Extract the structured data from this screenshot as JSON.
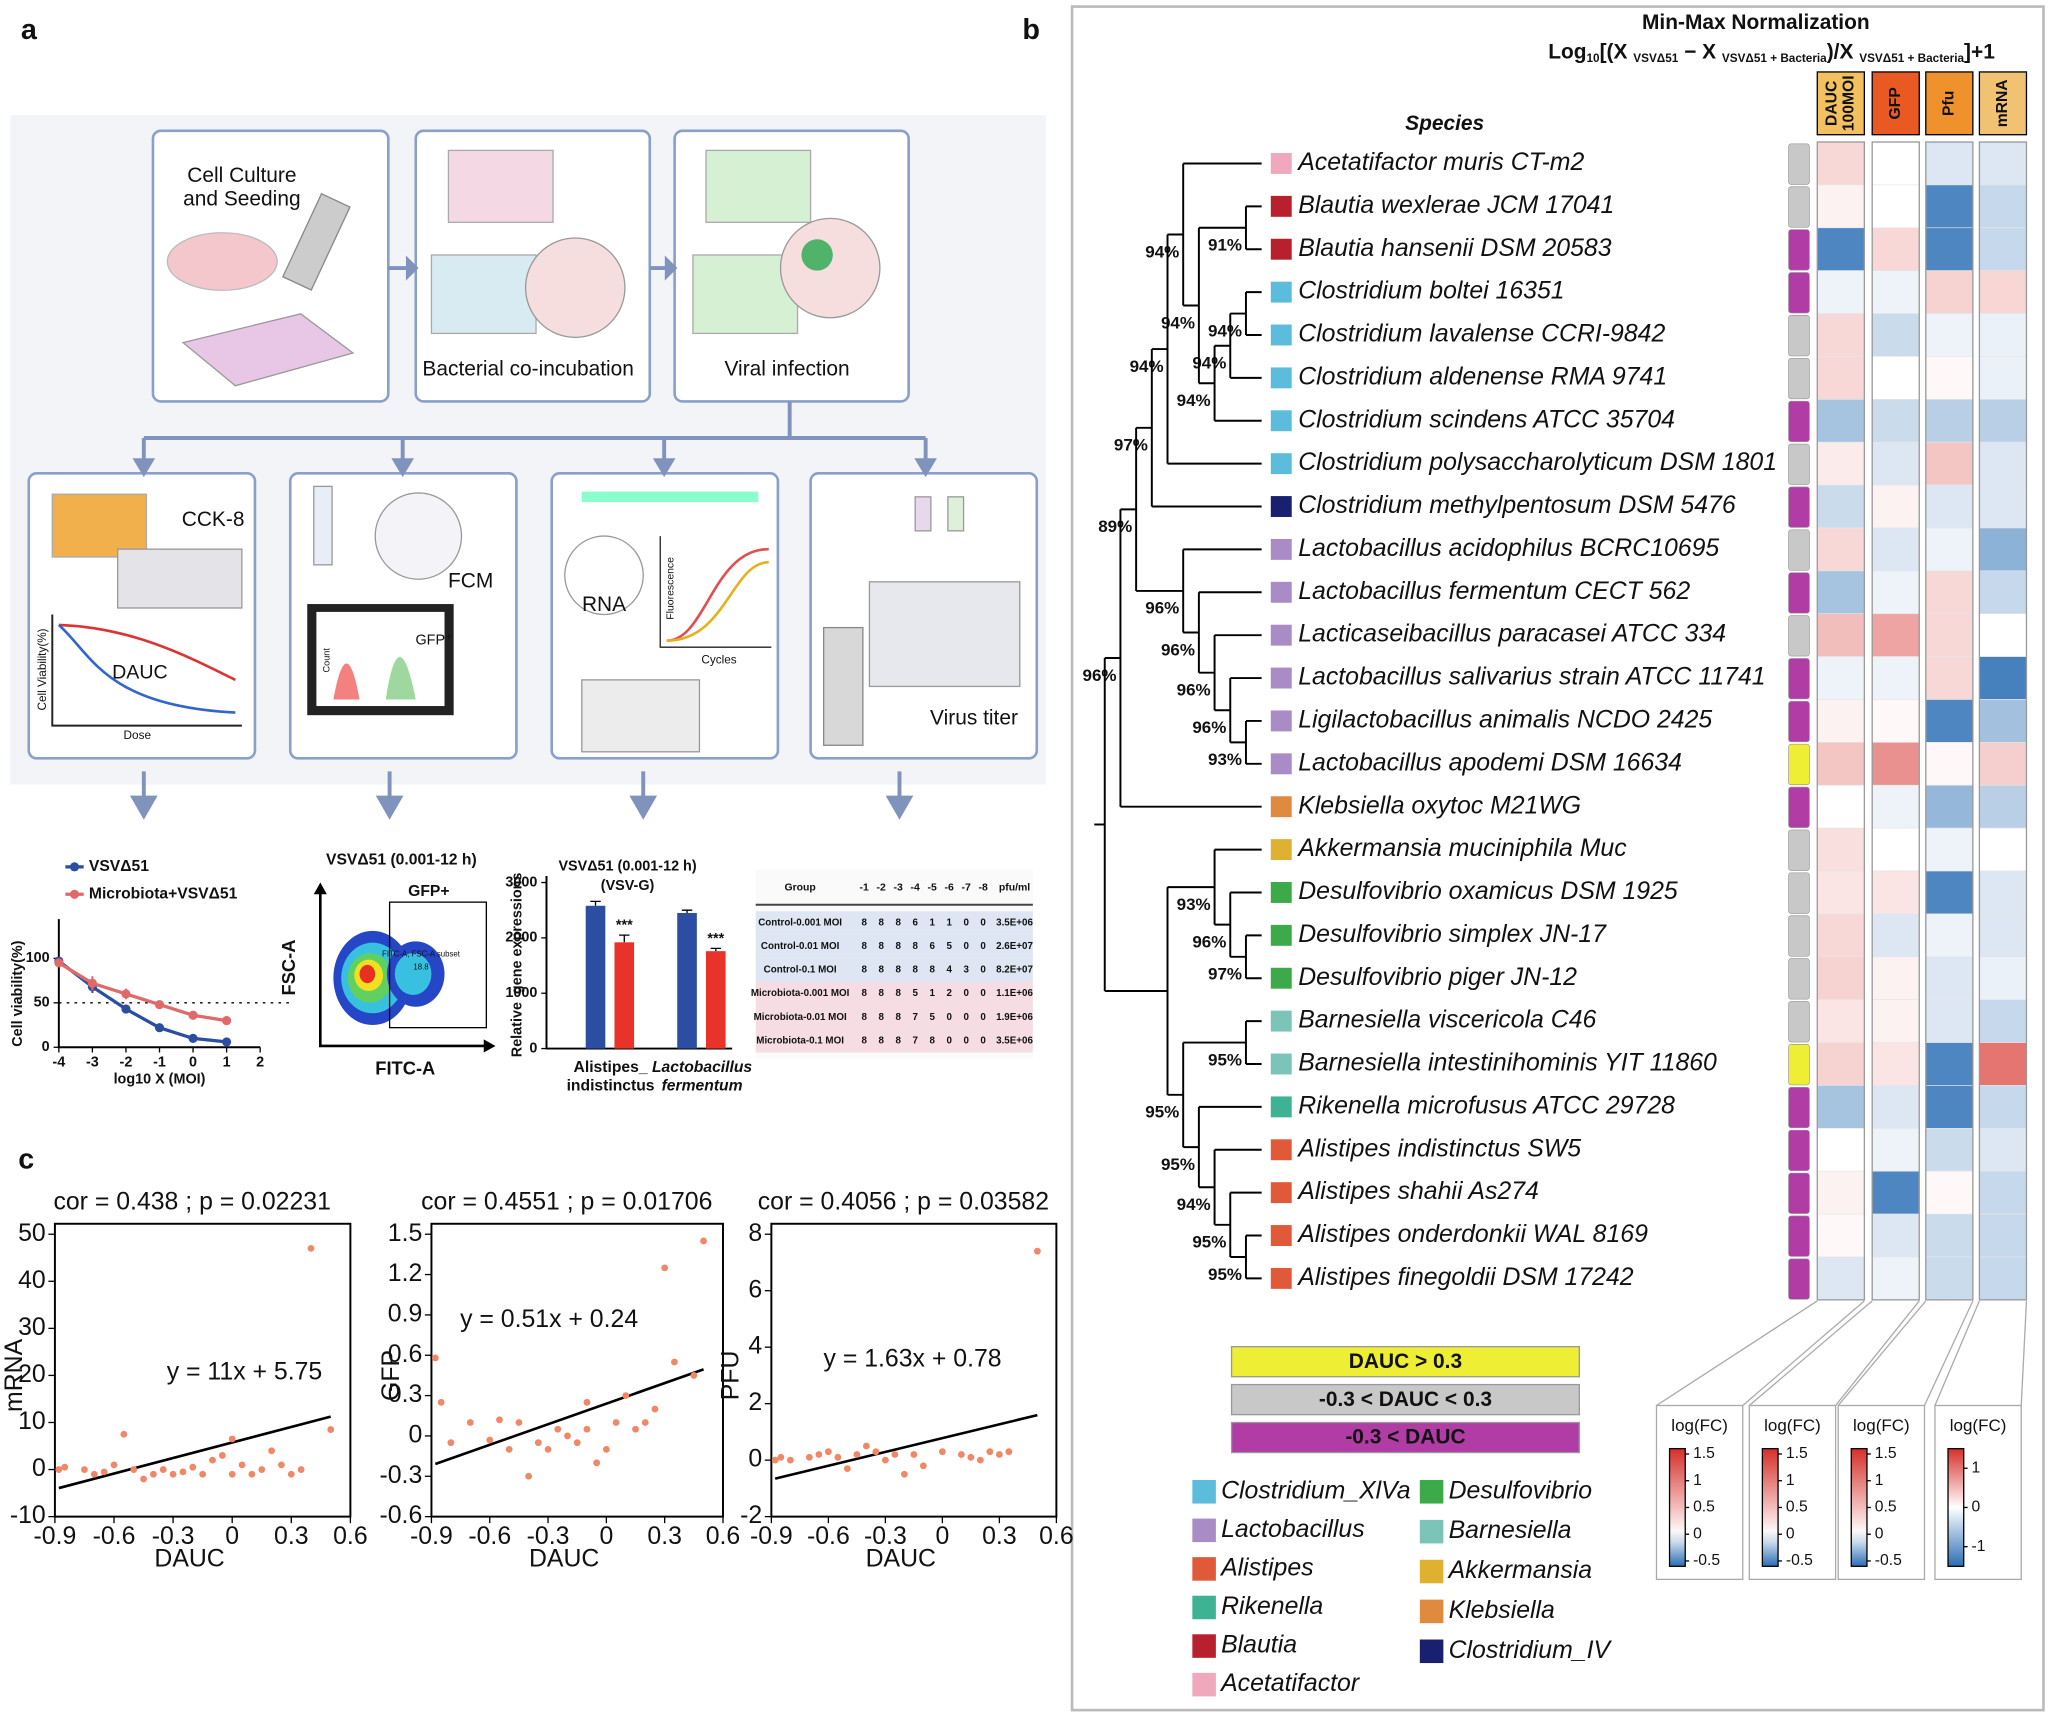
{
  "panel_labels": {
    "a": "a",
    "b": "b",
    "c": "c"
  },
  "workflow": {
    "culture": [
      "Cell Culture",
      "and Seeding"
    ],
    "coincubation": "Bacterial co-incubation",
    "infection": "Viral infection",
    "cck8": "CCK-8",
    "fcm": "FCM",
    "rna": "RNA",
    "titer": "Virus titer",
    "dauc": "DAUC",
    "viability_axis": "Cell Viability(%)",
    "dose": "Dose",
    "gfp": "GFP⁺",
    "count": "Count",
    "fluorescence": "Fluorescence",
    "cycles": "Cycles"
  },
  "flow": {
    "title": "VSVΔ51 (0.001-12 h)",
    "ylabel": "FSC-A",
    "xlabel": "FITC-A",
    "gate": "GFP+",
    "subset": "FITC-A, FSC-A subset",
    "percent": 18.8
  },
  "table": {
    "columns": [
      "Group",
      "-1",
      "-2",
      "-3",
      "-4",
      "-5",
      "-6",
      "-7",
      "-8",
      "pfu/ml"
    ],
    "rows": [
      [
        "Control-0.001 MOI",
        8,
        8,
        8,
        6,
        1,
        1,
        0,
        0,
        "3.5E+06"
      ],
      [
        "Control-0.01 MOI",
        8,
        8,
        8,
        8,
        6,
        5,
        0,
        0,
        "2.6E+07"
      ],
      [
        "Control-0.1 MOI",
        8,
        8,
        8,
        8,
        8,
        4,
        3,
        0,
        "8.2E+07"
      ],
      [
        "Microbiota-0.001 MOI",
        8,
        8,
        8,
        5,
        1,
        2,
        0,
        0,
        "1.1E+06"
      ],
      [
        "Microbiota-0.01 MOI",
        8,
        8,
        8,
        7,
        5,
        0,
        0,
        0,
        "1.9E+06"
      ],
      [
        "Microbiota-0.1 MOI",
        8,
        8,
        8,
        7,
        8,
        0,
        0,
        0,
        "3.5E+06"
      ]
    ],
    "row_colors": [
      "#dde6f2",
      "#dde6f2",
      "#dde6f2",
      "#f6dde4",
      "#f6dde4",
      "#f6dde4"
    ]
  },
  "tree": {
    "bootstrap": [
      "91%",
      "94%",
      "94%",
      "94%",
      "94%",
      "94%",
      "94%",
      "97%",
      "93%",
      "96%",
      "96%",
      "96%",
      "96%",
      "89%",
      "96%",
      "97%",
      "96%",
      "93%",
      "95%",
      "95%",
      "94%",
      "95%",
      "95%",
      "95%"
    ]
  },
  "chart_data": [
    {
      "type": "line",
      "x": [
        -4,
        -3,
        -2,
        -1,
        0,
        1
      ],
      "series": [
        {
          "name": "VSVΔ51",
          "color": "#2b4ea2",
          "values": [
            97,
            68,
            43,
            22,
            10,
            6
          ],
          "errors": [
            3,
            7,
            5,
            3,
            2,
            1
          ]
        },
        {
          "name": "Microbiota+VSVΔ51",
          "color": "#e06a6a",
          "values": [
            95,
            72,
            60,
            48,
            36,
            30
          ],
          "errors": [
            3,
            8,
            6,
            4,
            4,
            3
          ]
        }
      ],
      "xlabel": "log10 X (MOI)",
      "ylabel": "Cell viability(%)",
      "xlim": [
        -4,
        2
      ],
      "xticks": [
        -4,
        -3,
        -2,
        -1,
        0,
        1,
        2
      ],
      "ylim": [
        0,
        100
      ],
      "yticks": [
        0,
        50,
        100
      ],
      "refline": 50
    },
    {
      "type": "bar",
      "title": "VSVΔ51 (0.001-12 h)",
      "subtitle": "(VSV-G)",
      "ylabel": "Relative  gene expressions",
      "categories": [
        "Alistipes_ indistinctus",
        "Lactobacillus fermentum"
      ],
      "series": [
        {
          "color": "#2b4ea2",
          "values": [
            2580,
            2450
          ],
          "errors": [
            80,
            50
          ]
        },
        {
          "color": "#e8322a",
          "values": [
            1920,
            1760
          ],
          "errors": [
            130,
            50
          ]
        }
      ],
      "annotations": [
        "***",
        "***"
      ],
      "ylim": [
        0,
        3000
      ],
      "yticks": [
        0,
        1000,
        2000,
        3000
      ]
    },
    {
      "type": "scatter",
      "title": "cor = 0.438 ; p = 0.02231",
      "xlabel": "DAUC",
      "ylabel": "mRNA",
      "equation": "y = 11x + 5.75",
      "fit": {
        "slope": 11,
        "intercept": 5.75
      },
      "color": "#f08868",
      "x": [
        -0.88,
        -0.85,
        -0.75,
        -0.7,
        -0.65,
        -0.6,
        -0.55,
        -0.5,
        -0.45,
        -0.4,
        -0.35,
        -0.3,
        -0.25,
        -0.2,
        -0.15,
        -0.1,
        -0.05,
        0,
        0,
        0.05,
        0.1,
        0.15,
        0.2,
        0.25,
        0.3,
        0.35,
        0.4,
        0.5
      ],
      "values": [
        0,
        0.5,
        0,
        -1,
        -0.5,
        1,
        7.5,
        0,
        -2,
        -1,
        0,
        -1,
        -0.5,
        0.5,
        -1,
        2,
        3,
        -1,
        6.5,
        1,
        -1,
        0,
        4,
        1,
        -1,
        0,
        47,
        8.5
      ],
      "xlim": [
        -0.9,
        0.6
      ],
      "xticks": [
        -0.9,
        -0.6,
        -0.3,
        0,
        0.3,
        0.6
      ],
      "ylim": [
        -10,
        50
      ],
      "yticks": [
        -10,
        0,
        10,
        20,
        30,
        40,
        50
      ]
    },
    {
      "type": "scatter",
      "title": "cor = 0.4551 ; p = 0.01706",
      "xlabel": "DAUC",
      "ylabel": "GFP",
      "equation": "y = 0.51x + 0.24",
      "fit": {
        "slope": 0.51,
        "intercept": 0.24
      },
      "color": "#f08868",
      "x": [
        -0.88,
        -0.85,
        -0.8,
        -0.7,
        -0.6,
        -0.55,
        -0.5,
        -0.45,
        -0.4,
        -0.35,
        -0.3,
        -0.25,
        -0.2,
        -0.15,
        -0.1,
        -0.1,
        -0.05,
        0,
        0.05,
        0.1,
        0.15,
        0.2,
        0.25,
        0.3,
        0.35,
        0.45,
        0.5
      ],
      "values": [
        0.58,
        0.25,
        -0.05,
        0.1,
        -0.03,
        0.12,
        -0.1,
        0.1,
        -0.3,
        -0.05,
        -0.1,
        0.05,
        0,
        -0.05,
        0.05,
        0.25,
        -0.2,
        -0.1,
        0.1,
        0.3,
        0.05,
        0.1,
        0.2,
        1.25,
        0.55,
        0.45,
        1.45
      ],
      "xlim": [
        -0.9,
        0.6
      ],
      "xticks": [
        -0.9,
        -0.6,
        -0.3,
        0,
        0.3,
        0.6
      ],
      "ylim": [
        -0.6,
        1.5
      ],
      "yticks": [
        -0.6,
        -0.3,
        0,
        0.3,
        0.6,
        0.9,
        1.2,
        1.5
      ]
    },
    {
      "type": "scatter",
      "title": "cor = 0.4056 ; p = 0.03582",
      "xlabel": "DAUC",
      "ylabel": "PFU",
      "equation": "y = 1.63x + 0.78",
      "fit": {
        "slope": 1.63,
        "intercept": 0.78
      },
      "color": "#f08868",
      "x": [
        -0.88,
        -0.85,
        -0.8,
        -0.7,
        -0.65,
        -0.6,
        -0.55,
        -0.5,
        -0.45,
        -0.4,
        -0.35,
        -0.3,
        -0.25,
        -0.2,
        -0.15,
        -0.1,
        0,
        0.1,
        0.15,
        0.2,
        0.25,
        0.3,
        0.35,
        0.5
      ],
      "values": [
        0,
        0.1,
        0,
        0.1,
        0.2,
        0.3,
        0.1,
        -0.3,
        0.2,
        0.5,
        0.3,
        0,
        0.2,
        -0.5,
        0.2,
        -0.2,
        0.3,
        0.2,
        0.1,
        0,
        0.3,
        0.2,
        0.3,
        7.4
      ],
      "xlim": [
        -0.9,
        0.6
      ],
      "xticks": [
        -0.9,
        -0.6,
        -0.3,
        0,
        0.3,
        0.6
      ],
      "ylim": [
        -2,
        8
      ],
      "yticks": [
        -2,
        0,
        2,
        4,
        6,
        8
      ]
    },
    {
      "type": "heatmap",
      "title": "Min-Max Normalization",
      "formula": [
        {
          "text": "Log"
        },
        {
          "text": "10",
          "sub": true
        },
        {
          "text": "[(X "
        },
        {
          "text": "VSVΔ51",
          "sub": true
        },
        {
          "text": " − X "
        },
        {
          "text": "VSVΔ51 + Bacteria",
          "sub": true
        },
        {
          "text": ")/X "
        },
        {
          "text": "VSVΔ51 + Bacteria",
          "sub": true
        },
        {
          "text": "]+1"
        }
      ],
      "row_header": "Species",
      "rows": [
        "Acetatifactor muris CT-m2",
        "Blautia wexlerae JCM 17041",
        "Blautia hansenii DSM 20583",
        "Clostridium boltei 16351",
        "Clostridium lavalense CCRI-9842",
        "Clostridium aldenense RMA 9741",
        "Clostridium scindens ATCC 35704",
        "Clostridium polysaccharolyticum DSM 1801",
        "Clostridium methylpentosum DSM 5476",
        "Lactobacillus acidophilus BCRC10695",
        "Lactobacillus fermentum CECT 562",
        "Lacticaseibacillus paracasei ATCC 334",
        "Lactobacillus salivarius strain ATCC 11741",
        "Ligilactobacillus animalis NCDO 2425",
        "Lactobacillus apodemi DSM 16634",
        "Klebsiella oxytoc M21WG",
        "Akkermansia muciniphila Muc",
        "Desulfovibrio oxamicus DSM 1925",
        "Desulfovibrio simplex JN-17",
        "Desulfovibrio piger JN-12",
        "Barnesiella viscericola C46",
        "Barnesiella intestinihominis YIT 11860",
        "Rikenella microfusus ATCC 29728",
        "Alistipes indistinctus SW5",
        "Alistipes shahii As274",
        "Alistipes onderdonkii WAL 8169",
        "Alistipes finegoldii DSM 17242"
      ],
      "row_genus": [
        5,
        4,
        4,
        0,
        0,
        0,
        0,
        0,
        10,
        1,
        1,
        1,
        1,
        1,
        1,
        9,
        8,
        6,
        6,
        6,
        7,
        7,
        3,
        2,
        2,
        2,
        2
      ],
      "columns": [
        [
          "DAUC",
          "100MOI"
        ],
        [
          "GFP"
        ],
        [
          "Pfu"
        ],
        [
          "mRNA"
        ]
      ],
      "column_colors": [
        "#f2c05e",
        "#e85a22",
        "#f0922c",
        "#f0c272"
      ],
      "values": [
        [
          0.3,
          0,
          -0.1,
          -0.25
        ],
        [
          0.1,
          0,
          -0.5,
          -0.4
        ],
        [
          -0.5,
          0.3,
          -0.5,
          -0.4
        ],
        [
          -0.05,
          -0.05,
          0.35,
          0.3
        ],
        [
          0.3,
          -0.15,
          -0.05,
          -0.15
        ],
        [
          0.3,
          0,
          0.05,
          -0.15
        ],
        [
          -0.25,
          -0.15,
          -0.2,
          -0.5
        ],
        [
          0.15,
          -0.1,
          0.45,
          -0.25
        ],
        [
          -0.15,
          0.1,
          -0.1,
          -0.25
        ],
        [
          0.3,
          -0.1,
          -0.05,
          -0.8
        ],
        [
          -0.25,
          -0.05,
          0.3,
          -0.4
        ],
        [
          0.5,
          0.7,
          0.3,
          0
        ],
        [
          -0.05,
          -0.05,
          0.3,
          -1.3
        ],
        [
          0.1,
          0.05,
          -0.5,
          -0.65
        ],
        [
          0.45,
          0.85,
          0.05,
          0.35
        ],
        [
          0,
          -0.05,
          -0.3,
          -0.5
        ],
        [
          0.25,
          0,
          -0.05,
          0
        ],
        [
          0.2,
          0.2,
          -0.5,
          -0.25
        ],
        [
          0.3,
          -0.1,
          -0.05,
          -0.25
        ],
        [
          0.35,
          0.1,
          -0.1,
          -0.15
        ],
        [
          0.2,
          0.1,
          -0.1,
          -0.4
        ],
        [
          0.35,
          0.2,
          -0.5,
          1.0
        ],
        [
          -0.25,
          -0.1,
          -0.5,
          -0.4
        ],
        [
          0,
          -0.05,
          -0.15,
          -0.25
        ],
        [
          0.1,
          -0.5,
          0.05,
          -0.4
        ],
        [
          0.05,
          -0.1,
          -0.15,
          -0.4
        ],
        [
          -0.1,
          -0.05,
          -0.15,
          -0.4
        ]
      ],
      "groups": [
        1,
        1,
        2,
        2,
        1,
        1,
        2,
        1,
        2,
        1,
        2,
        1,
        2,
        2,
        0,
        2,
        1,
        1,
        1,
        1,
        1,
        0,
        2,
        2,
        2,
        2,
        2
      ],
      "group_labels": [
        "DAUC > 0.3",
        "-0.3 < DAUC < 0.3",
        "-0.3 < DAUC"
      ],
      "group_colors": [
        "#eeee34",
        "#c8c8c8",
        "#b23ca6"
      ],
      "genera": [
        "Clostridium_XlVa",
        "Lactobacillus",
        "Alistipes",
        "Rikenella",
        "Blautia",
        "Acetatifactor",
        "Desulfovibrio",
        "Barnesiella",
        "Akkermansia",
        "Klebsiella",
        "Clostridium_IV"
      ],
      "genus_colors": [
        "#5bbcdc",
        "#a98bc6",
        "#e05a3a",
        "#3db394",
        "#b8202e",
        "#f0a8bc",
        "#3daa4a",
        "#7cc4b8",
        "#e0b030",
        "#e08a40",
        "#1a2070"
      ],
      "color_low": "#2a6eb4",
      "color_high": "#d6302a",
      "colorbars": [
        {
          "title": "log(FC)",
          "lim": [
            -0.6,
            1.6
          ],
          "ticks": [
            1.5,
            1,
            0.5,
            0,
            -0.5
          ]
        },
        {
          "title": "log(FC)",
          "lim": [
            -0.6,
            1.6
          ],
          "ticks": [
            1.5,
            1,
            0.5,
            0,
            -0.5
          ]
        },
        {
          "title": "log(FC)",
          "lim": [
            -0.6,
            1.6
          ],
          "ticks": [
            1.5,
            1,
            0.5,
            0,
            -0.5
          ]
        },
        {
          "title": "log(FC)",
          "lim": [
            -1.5,
            1.5
          ],
          "ticks": [
            1,
            0,
            -1
          ]
        }
      ]
    }
  ]
}
